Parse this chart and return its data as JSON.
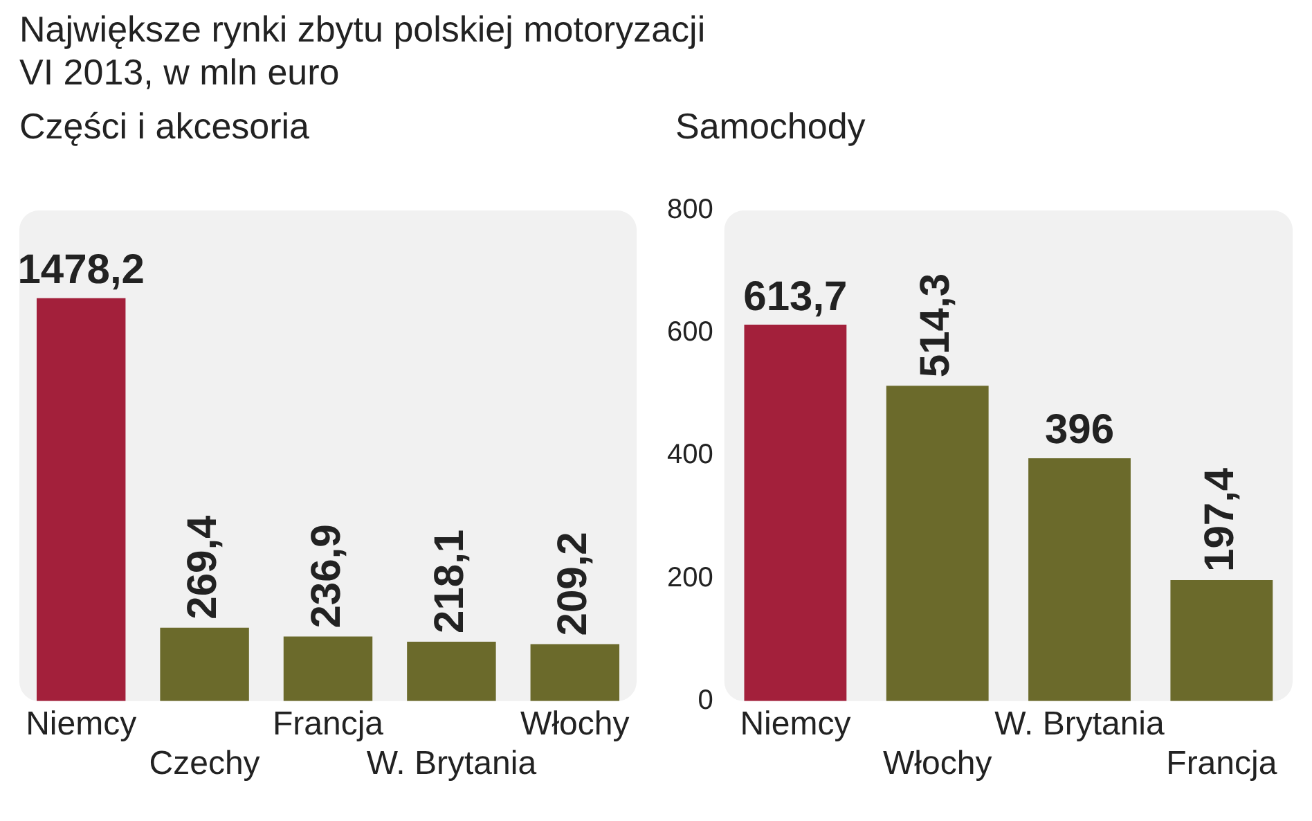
{
  "chart_data": [
    {
      "type": "bar",
      "title": "Największe rynki zbytu polskiej motoryzacji",
      "subtitle": "VI 2013, w mln euro",
      "xlabel": "Części i akcesoria",
      "categories": [
        "Niemcy",
        "Czechy",
        "Francja",
        "W. Brytania",
        "Włochy"
      ],
      "values": [
        1478.2,
        269.4,
        236.9,
        218.1,
        209.2
      ],
      "colors": [
        "#a3203b",
        "#6b6a2b",
        "#6b6a2b",
        "#6b6a2b",
        "#6b6a2b"
      ],
      "value_labels": [
        "1478,2",
        "269,4",
        "236,9",
        "218,1",
        "209,2"
      ],
      "tick_labels": "x",
      "grid": false,
      "legend": false
    },
    {
      "type": "bar",
      "xlabel": "Samochody",
      "categories": [
        "Niemcy",
        "Włochy",
        "W. Brytania",
        "Francja"
      ],
      "values": [
        613.7,
        514.3,
        396,
        197.4
      ],
      "colors": [
        "#a3203b",
        "#6b6a2b",
        "#6b6a2b",
        "#6b6a2b"
      ],
      "ylim": [
        0,
        800
      ],
      "yticks": [
        0,
        200,
        400,
        600,
        800
      ],
      "value_labels": [
        "613,7",
        "514,3",
        "396",
        "197,4"
      ],
      "grid": false,
      "legend": false
    }
  ]
}
